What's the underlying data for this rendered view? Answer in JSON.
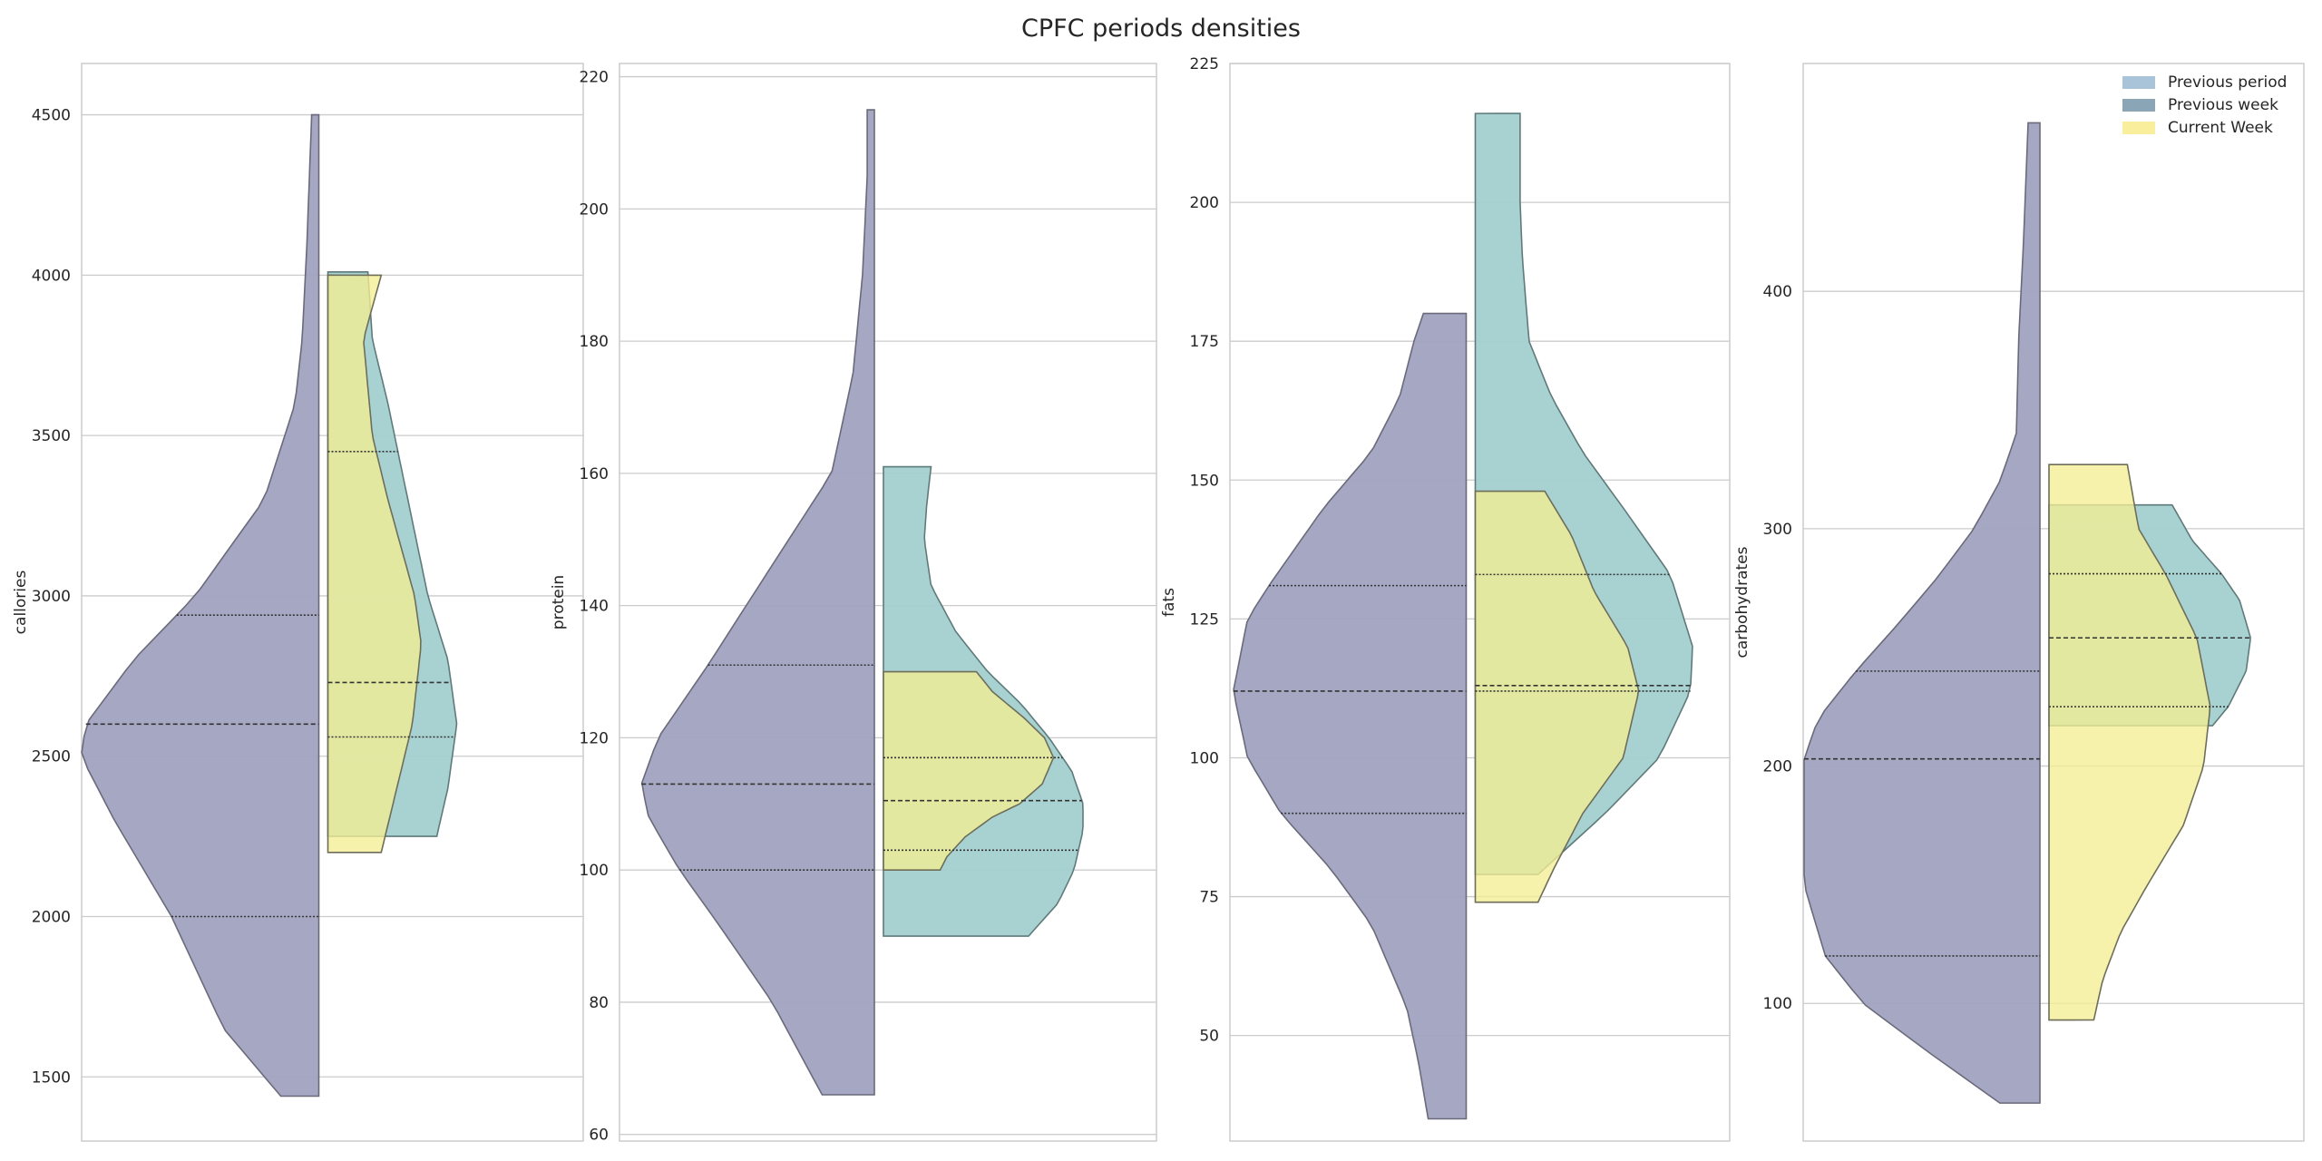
{
  "chart_title": "CPFC periods densities",
  "legend": {
    "placement": "top-right",
    "items": [
      {
        "label": "Previous period",
        "color": "#a9c4d8"
      },
      {
        "label": "Previous week",
        "color": "#8aa5b5"
      },
      {
        "label": "Current Week",
        "color": "#f8ee9c"
      }
    ]
  },
  "colors": {
    "left_violin": "#a0a2c0",
    "right_violin": "#a3cfcf",
    "current_week": "#f4ee94",
    "grid": "#cccccc"
  },
  "chart_data": [
    {
      "type": "violin",
      "ylabel": "callories",
      "ylim": [
        1300,
        4660
      ],
      "yticks": [
        1500,
        2000,
        2500,
        3000,
        3500,
        4000,
        4500
      ],
      "grid": true,
      "left": {
        "min": 1440,
        "max": 4500,
        "quartiles": [
          2000,
          2600,
          2940
        ],
        "profile": [
          [
            1440,
            0.16
          ],
          [
            1650,
            0.4
          ],
          [
            2000,
            0.62
          ],
          [
            2300,
            0.86
          ],
          [
            2500,
            1.0
          ],
          [
            2600,
            0.98
          ],
          [
            2800,
            0.78
          ],
          [
            3000,
            0.52
          ],
          [
            3300,
            0.23
          ],
          [
            3600,
            0.1
          ],
          [
            3800,
            0.07
          ],
          [
            4100,
            0.05
          ],
          [
            4500,
            0.03
          ]
        ]
      },
      "right": {
        "min": 2250,
        "max": 4010,
        "quartiles": [
          2560,
          2730,
          3450
        ],
        "profile": [
          [
            2250,
            0.49
          ],
          [
            2400,
            0.54
          ],
          [
            2600,
            0.58
          ],
          [
            2800,
            0.54
          ],
          [
            3000,
            0.45
          ],
          [
            3300,
            0.36
          ],
          [
            3600,
            0.27
          ],
          [
            3800,
            0.2
          ],
          [
            4010,
            0.18
          ]
        ]
      },
      "current": {
        "min": 2200,
        "max": 4000,
        "quartiles": [
          2560,
          2730,
          3450
        ],
        "profile": [
          [
            2200,
            0.24
          ],
          [
            2400,
            0.31
          ],
          [
            2600,
            0.38
          ],
          [
            2850,
            0.42
          ],
          [
            3000,
            0.39
          ],
          [
            3300,
            0.27
          ],
          [
            3500,
            0.2
          ],
          [
            3800,
            0.16
          ],
          [
            4000,
            0.24
          ]
        ]
      }
    },
    {
      "type": "violin",
      "ylabel": "protein",
      "ylim": [
        59,
        222
      ],
      "yticks": [
        60,
        80,
        100,
        120,
        140,
        160,
        180,
        200,
        220
      ],
      "grid": true,
      "left": {
        "min": 66,
        "max": 215,
        "quartiles": [
          100,
          113,
          131
        ],
        "profile": [
          [
            66,
            0.22
          ],
          [
            80,
            0.43
          ],
          [
            92,
            0.66
          ],
          [
            100,
            0.82
          ],
          [
            108,
            0.95
          ],
          [
            113,
            0.98
          ],
          [
            120,
            0.91
          ],
          [
            131,
            0.7
          ],
          [
            145,
            0.45
          ],
          [
            160,
            0.18
          ],
          [
            175,
            0.09
          ],
          [
            190,
            0.05
          ],
          [
            205,
            0.03
          ],
          [
            215,
            0.03
          ]
        ]
      },
      "right": {
        "min": 90,
        "max": 161,
        "quartiles": [
          103,
          110.5,
          117
        ],
        "profile": [
          [
            90,
            0.64
          ],
          [
            95,
            0.77
          ],
          [
            100,
            0.84
          ],
          [
            106,
            0.88
          ],
          [
            110,
            0.88
          ],
          [
            115,
            0.83
          ],
          [
            120,
            0.73
          ],
          [
            125,
            0.61
          ],
          [
            130,
            0.46
          ],
          [
            136,
            0.32
          ],
          [
            143,
            0.21
          ],
          [
            150,
            0.18
          ],
          [
            155,
            0.19
          ],
          [
            161,
            0.21
          ]
        ]
      },
      "current": {
        "min": 100,
        "max": 130,
        "quartiles": [
          103,
          110.5,
          117
        ],
        "profile": [
          [
            100,
            0.25
          ],
          [
            102,
            0.28
          ],
          [
            105,
            0.36
          ],
          [
            108,
            0.48
          ],
          [
            110,
            0.6
          ],
          [
            113,
            0.7
          ],
          [
            117,
            0.75
          ],
          [
            120,
            0.71
          ],
          [
            123,
            0.62
          ],
          [
            127,
            0.48
          ],
          [
            130,
            0.41
          ]
        ]
      }
    },
    {
      "type": "violin",
      "ylabel": "fats",
      "ylim": [
        31,
        225
      ],
      "yticks": [
        50,
        75,
        100,
        125,
        150,
        175,
        200,
        225
      ],
      "grid": true,
      "left": {
        "min": 35,
        "max": 180,
        "quartiles": [
          90,
          112,
          131
        ],
        "profile": [
          [
            35,
            0.16
          ],
          [
            45,
            0.2
          ],
          [
            55,
            0.25
          ],
          [
            70,
            0.4
          ],
          [
            80,
            0.57
          ],
          [
            90,
            0.78
          ],
          [
            100,
            0.92
          ],
          [
            112,
            0.98
          ],
          [
            125,
            0.92
          ],
          [
            131,
            0.83
          ],
          [
            145,
            0.6
          ],
          [
            155,
            0.4
          ],
          [
            165,
            0.28
          ],
          [
            175,
            0.22
          ],
          [
            180,
            0.18
          ]
        ]
      },
      "right": {
        "min": 79,
        "max": 216,
        "quartiles": [
          112,
          113,
          133
        ],
        "profile": [
          [
            79,
            0.28
          ],
          [
            90,
            0.58
          ],
          [
            100,
            0.82
          ],
          [
            112,
            0.96
          ],
          [
            120,
            0.97
          ],
          [
            133,
            0.87
          ],
          [
            145,
            0.66
          ],
          [
            155,
            0.48
          ],
          [
            165,
            0.34
          ],
          [
            175,
            0.24
          ],
          [
            190,
            0.21
          ],
          [
            200,
            0.2
          ],
          [
            216,
            0.2
          ]
        ]
      },
      "current": {
        "min": 74,
        "max": 148,
        "quartiles": [
          112,
          113,
          133
        ],
        "profile": [
          [
            74,
            0.28
          ],
          [
            80,
            0.35
          ],
          [
            90,
            0.48
          ],
          [
            100,
            0.66
          ],
          [
            112,
            0.73
          ],
          [
            120,
            0.68
          ],
          [
            130,
            0.53
          ],
          [
            140,
            0.43
          ],
          [
            148,
            0.31
          ]
        ]
      }
    },
    {
      "type": "violin",
      "ylabel": "carbohydrates",
      "ylim": [
        42,
        496
      ],
      "yticks": [
        100,
        200,
        300,
        400
      ],
      "grid": true,
      "left": {
        "min": 58,
        "max": 471,
        "quartiles": [
          120,
          203,
          240
        ],
        "profile": [
          [
            58,
            0.17
          ],
          [
            80,
            0.48
          ],
          [
            100,
            0.75
          ],
          [
            120,
            0.91
          ],
          [
            150,
            1.0
          ],
          [
            203,
            1.0
          ],
          [
            220,
            0.94
          ],
          [
            240,
            0.78
          ],
          [
            260,
            0.6
          ],
          [
            280,
            0.43
          ],
          [
            300,
            0.28
          ],
          [
            320,
            0.17
          ],
          [
            340,
            0.1
          ],
          [
            380,
            0.09
          ],
          [
            420,
            0.07
          ],
          [
            471,
            0.05
          ]
        ]
      },
      "right": {
        "min": 217,
        "max": 310,
        "quartiles": [
          225,
          254,
          281
        ],
        "profile": [
          [
            217,
            0.73
          ],
          [
            225,
            0.8
          ],
          [
            240,
            0.88
          ],
          [
            254,
            0.9
          ],
          [
            270,
            0.85
          ],
          [
            281,
            0.77
          ],
          [
            295,
            0.64
          ],
          [
            310,
            0.55
          ]
        ]
      },
      "current": {
        "min": 93,
        "max": 327,
        "quartiles": [
          225,
          254,
          281
        ],
        "profile": [
          [
            93,
            0.2
          ],
          [
            110,
            0.24
          ],
          [
            130,
            0.32
          ],
          [
            150,
            0.44
          ],
          [
            175,
            0.6
          ],
          [
            200,
            0.69
          ],
          [
            225,
            0.72
          ],
          [
            254,
            0.66
          ],
          [
            281,
            0.52
          ],
          [
            300,
            0.4
          ],
          [
            327,
            0.35
          ]
        ]
      }
    }
  ]
}
